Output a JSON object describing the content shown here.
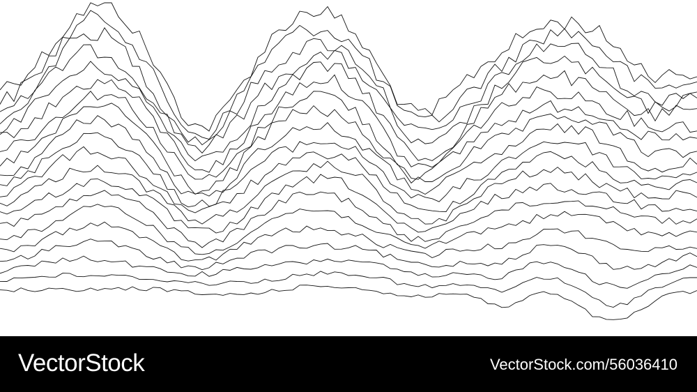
{
  "colors": {
    "background": "#ffffff",
    "line": "#111111",
    "footer_background": "#000000",
    "footer_text": "#ffffff"
  },
  "artwork": {
    "description_kind": "wireframe wave landscape",
    "line_count": 20
  },
  "footer": {
    "brand": "VectorStock",
    "image_id": "VectorStock.com/56036410"
  }
}
